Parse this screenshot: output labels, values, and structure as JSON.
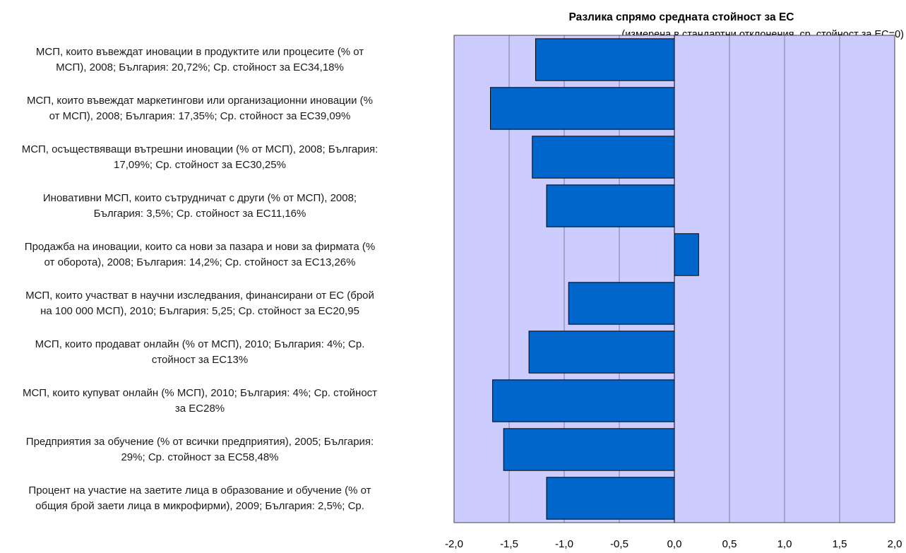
{
  "chart_data": {
    "type": "bar",
    "orientation": "horizontal",
    "title": "Разлика спрямо средната стойност за ЕС",
    "subtitle": "(измерена в стандартни отклонения, ср. стойност за ЕС=0)",
    "xlim": [
      -2.0,
      2.0
    ],
    "x_ticks": [
      "-2,0",
      "-1,5",
      "-1,0",
      "-0,5",
      "0,0",
      "0,5",
      "1,0",
      "1,5",
      "2,0"
    ],
    "x_tick_values": [
      -2.0,
      -1.5,
      -1.0,
      -0.5,
      0.0,
      0.5,
      1.0,
      1.5,
      2.0
    ],
    "grid": "vertical",
    "plot_background": "#ccccff",
    "bar_color": "#0066cc",
    "categories": [
      "МСП, които въвеждат иновации в продуктите или процесите (% от\nМСП), 2008; България: 20,72%; Ср. стойност за ЕС34,18%",
      "МСП, които въвеждат маркетингови или организационни иновации (%\nот МСП), 2008; България: 17,35%; Ср. стойност за ЕС39,09%",
      "МСП, осъществяващи вътрешни иновации  (% от МСП), 2008; България:\n17,09%; Ср. стойност за ЕС30,25%",
      "Иновативни МСП, които сътрудничат с други (% от МСП), 2008;\nБългария: 3,5%; Ср. стойност за ЕС11,16%",
      "Продажба на иновации, които са нови за пазара и нови за фирмата (%\nот оборота), 2008; България: 14,2%; Ср. стойност за ЕС13,26%",
      "МСП, които участват в научни изследвания, финансирани от ЕС (брой\nна 100 000 МСП), 2010; България: 5,25; Ср. стойност за ЕС20,95",
      "МСП, които продават онлайн (% от МСП), 2010; България: 4%; Ср.\nстойност за ЕС13%",
      "МСП, които купуват онлайн (% МСП), 2010; България: 4%; Ср. стойност\nза ЕС28%",
      "Предприятия за обучение (% от всички предприятия), 2005; България:\n29%; Ср. стойност за ЕС58,48%",
      "Процент на участие на заетите лица в образование и обучение (% от\nобщия брой заети лица в микрофирми), 2009; България: 2,5%; Ср."
    ],
    "values": [
      -1.26,
      -1.67,
      -1.29,
      -1.16,
      0.22,
      -0.96,
      -1.32,
      -1.65,
      -1.55,
      -1.16
    ]
  }
}
